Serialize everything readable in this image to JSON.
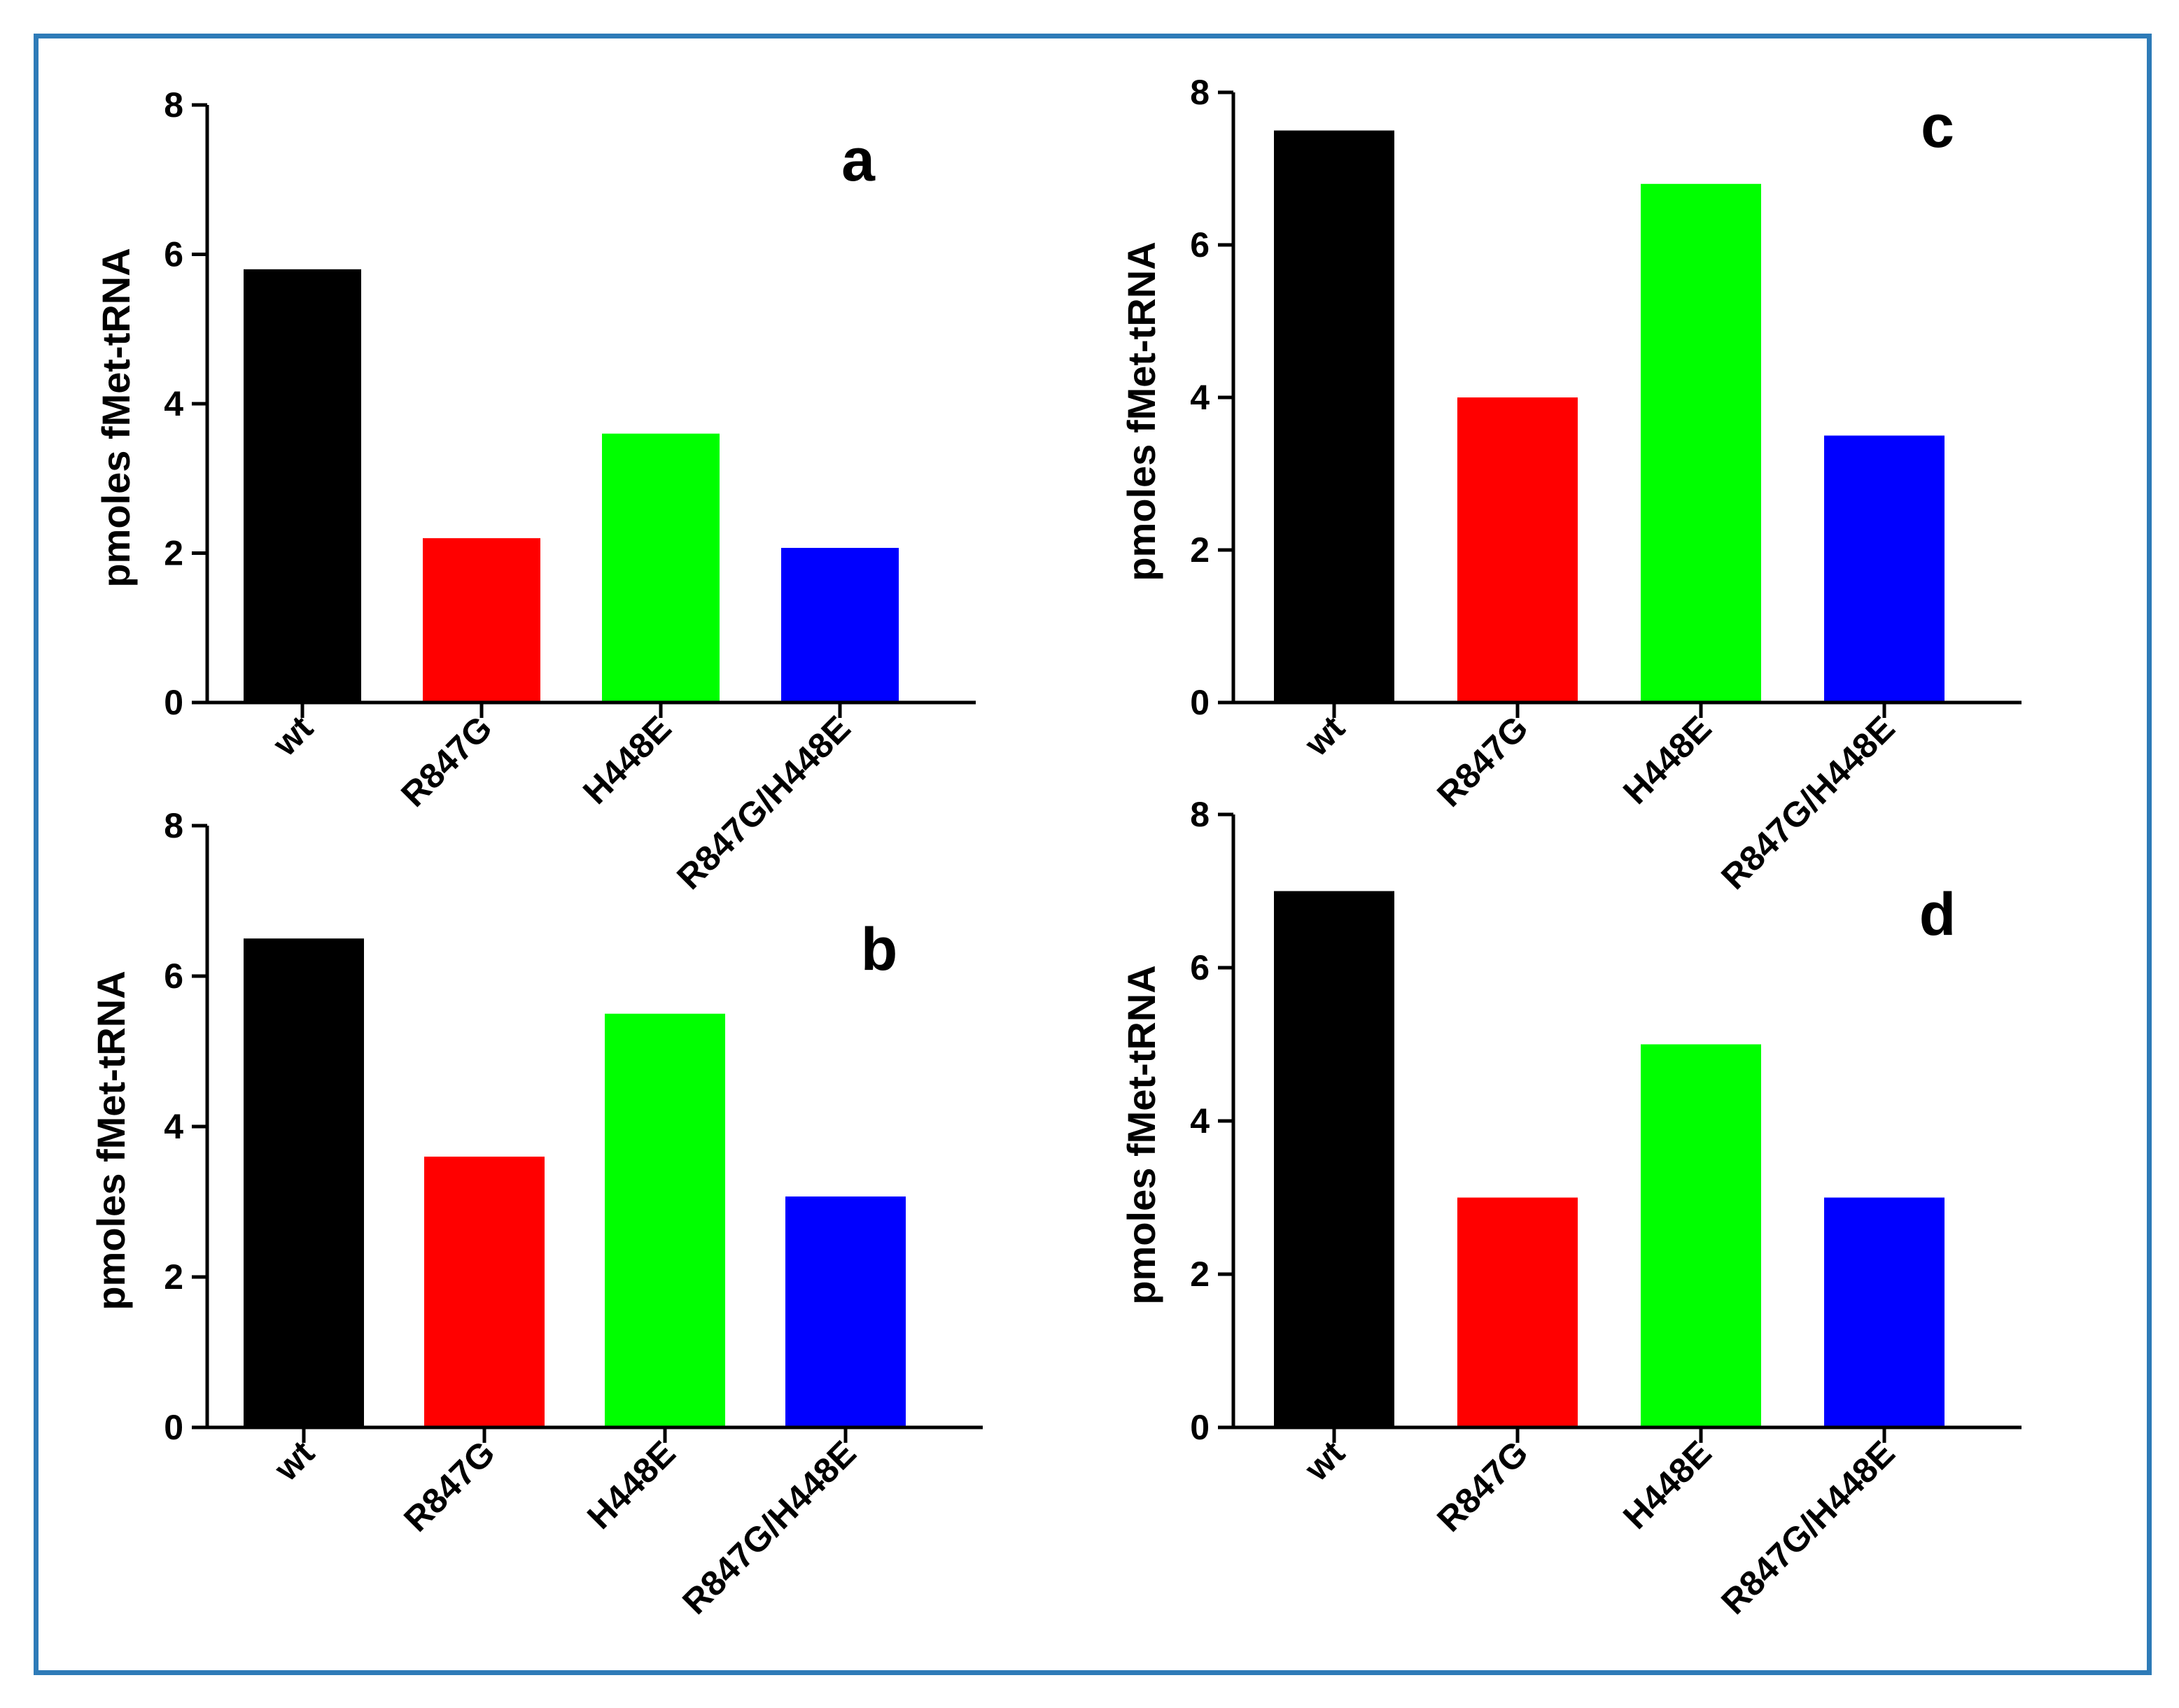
{
  "figure": {
    "frame_color": "#2E7BB8"
  },
  "chart_data": [
    {
      "type": "bar",
      "panel_label": "a",
      "categories": [
        "wt",
        "R847G",
        "H448E",
        "R847G/H448E"
      ],
      "values": [
        5.8,
        2.2,
        3.6,
        2.07
      ],
      "colors": [
        "#000000",
        "#FF0000",
        "#00FF00",
        "#0000FF"
      ],
      "ylabel": "pmoles fMet-tRNA",
      "xlabel": "",
      "ylim": [
        0,
        8
      ],
      "yticks": [
        "0",
        "2",
        "4",
        "6",
        "8"
      ]
    },
    {
      "type": "bar",
      "panel_label": "c",
      "categories": [
        "wt",
        "R847G",
        "H448E",
        "R847G/H448E"
      ],
      "values": [
        7.5,
        4.0,
        6.8,
        3.5
      ],
      "colors": [
        "#000000",
        "#FF0000",
        "#00FF00",
        "#0000FF"
      ],
      "ylabel": "pmoles fMet-tRNA",
      "xlabel": "",
      "ylim": [
        0,
        8
      ],
      "yticks": [
        "0",
        "2",
        "4",
        "6",
        "8"
      ]
    },
    {
      "type": "bar",
      "panel_label": "b",
      "categories": [
        "wt",
        "R847G",
        "H448E",
        "R847G/H448E"
      ],
      "values": [
        6.5,
        3.6,
        5.5,
        3.07
      ],
      "colors": [
        "#000000",
        "#FF0000",
        "#00FF00",
        "#0000FF"
      ],
      "ylabel": "pmoles fMet-tRNA",
      "xlabel": "",
      "ylim": [
        0,
        8
      ],
      "yticks": [
        "0",
        "2",
        "4",
        "6",
        "8"
      ]
    },
    {
      "type": "bar",
      "panel_label": "d",
      "categories": [
        "wt",
        "R847G",
        "H448E",
        "R847G/H448E"
      ],
      "values": [
        7.0,
        3.0,
        5.0,
        3.0
      ],
      "colors": [
        "#000000",
        "#FF0000",
        "#00FF00",
        "#0000FF"
      ],
      "ylabel": "pmoles fMet-tRNA",
      "xlabel": "",
      "ylim": [
        0,
        8
      ],
      "yticks": [
        "0",
        "2",
        "4",
        "6",
        "8"
      ]
    }
  ]
}
